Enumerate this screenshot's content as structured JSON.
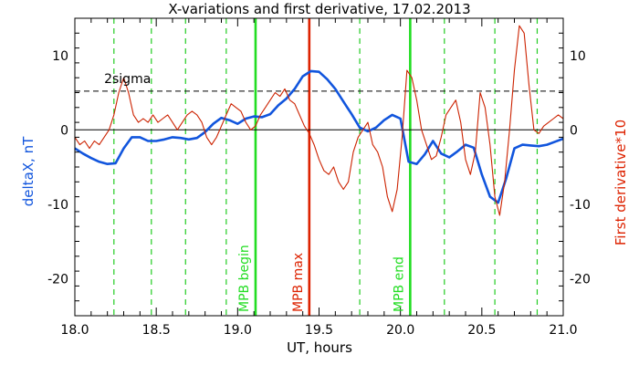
{
  "chart_data": {
    "type": "line",
    "title": "X-variations and first derivative, 17.02.2013",
    "xlabel": "UT, hours",
    "ylabel_left": "deltaX, nT",
    "ylabel_right": "First derivative*10",
    "xlim": [
      18.0,
      21.0
    ],
    "ylim": [
      -25,
      15
    ],
    "x_ticks": [
      18.0,
      18.5,
      19.0,
      19.5,
      20.0,
      20.5,
      21.0
    ],
    "x_tick_labels": [
      "18.0",
      "18.5",
      "19.0",
      "19.5",
      "20.0",
      "20.5",
      "21.0"
    ],
    "y_ticks": [
      10,
      0,
      -10,
      -20
    ],
    "y_tick_labels": [
      "10",
      "0",
      "-10",
      "-20"
    ],
    "grid": false,
    "zero_line": 0,
    "sigma_line": {
      "label": "2sigma",
      "y": 5.2,
      "color": "#000000"
    },
    "dashed_verticals": [
      18.24,
      18.47,
      18.68,
      18.93,
      19.75,
      20.27,
      20.58,
      20.84
    ],
    "dashed_color": "#22cc22",
    "markers": [
      {
        "x": 19.11,
        "label": "MPB begin",
        "color": "#22dd22"
      },
      {
        "x": 19.44,
        "label": "MPB max",
        "color": "#dd2200"
      },
      {
        "x": 20.06,
        "label": "MPB end",
        "color": "#22dd22"
      }
    ],
    "series": [
      {
        "name": "deltaX",
        "color": "#1155dd",
        "x": [
          18.0,
          18.05,
          18.1,
          18.15,
          18.2,
          18.25,
          18.3,
          18.35,
          18.4,
          18.45,
          18.5,
          18.55,
          18.6,
          18.65,
          18.7,
          18.75,
          18.8,
          18.85,
          18.9,
          18.95,
          19.0,
          19.05,
          19.1,
          19.15,
          19.2,
          19.25,
          19.3,
          19.35,
          19.4,
          19.45,
          19.5,
          19.55,
          19.6,
          19.65,
          19.7,
          19.75,
          19.8,
          19.85,
          19.9,
          19.95,
          20.0,
          20.05,
          20.1,
          20.15,
          20.2,
          20.25,
          20.3,
          20.35,
          20.4,
          20.45,
          20.5,
          20.55,
          20.6,
          20.65,
          20.7,
          20.75,
          20.8,
          20.85,
          20.9,
          20.95,
          21.0
        ],
        "y": [
          -2.5,
          -3.2,
          -3.8,
          -4.3,
          -4.6,
          -4.5,
          -2.5,
          -1.0,
          -1.0,
          -1.5,
          -1.5,
          -1.3,
          -1.0,
          -1.1,
          -1.3,
          -1.1,
          -0.3,
          0.8,
          1.6,
          1.3,
          0.8,
          1.5,
          1.8,
          1.7,
          2.1,
          3.3,
          4.2,
          5.5,
          7.2,
          7.9,
          7.8,
          6.8,
          5.5,
          3.8,
          2.1,
          0.3,
          -0.2,
          0.3,
          1.3,
          2.0,
          1.5,
          -4.3,
          -4.6,
          -3.3,
          -1.5,
          -3.2,
          -3.7,
          -2.9,
          -2.0,
          -2.4,
          -6.0,
          -9.0,
          -9.8,
          -6.5,
          -2.5,
          -2.0,
          -2.1,
          -2.2,
          -2.0,
          -1.6,
          -1.2
        ]
      },
      {
        "name": "First derivative*10",
        "color": "#cc2200",
        "x": [
          18.0,
          18.03,
          18.06,
          18.09,
          18.12,
          18.15,
          18.18,
          18.21,
          18.24,
          18.27,
          18.3,
          18.33,
          18.36,
          18.39,
          18.42,
          18.45,
          18.48,
          18.51,
          18.54,
          18.57,
          18.6,
          18.63,
          18.66,
          18.69,
          18.72,
          18.75,
          18.78,
          18.81,
          18.84,
          18.87,
          18.9,
          18.93,
          18.96,
          18.99,
          19.02,
          19.05,
          19.08,
          19.11,
          19.14,
          19.17,
          19.2,
          19.23,
          19.26,
          19.29,
          19.32,
          19.35,
          19.38,
          19.41,
          19.44,
          19.47,
          19.5,
          19.53,
          19.56,
          19.59,
          19.62,
          19.65,
          19.68,
          19.71,
          19.74,
          19.77,
          19.8,
          19.83,
          19.86,
          19.89,
          19.92,
          19.95,
          19.98,
          20.01,
          20.04,
          20.07,
          20.1,
          20.13,
          20.16,
          20.19,
          20.22,
          20.25,
          20.28,
          20.31,
          20.34,
          20.37,
          20.4,
          20.43,
          20.46,
          20.49,
          20.52,
          20.55,
          20.58,
          20.61,
          20.64,
          20.67,
          20.7,
          20.73,
          20.76,
          20.79,
          20.82,
          20.85,
          20.88,
          20.91,
          20.94,
          20.97,
          21.0
        ],
        "y": [
          -1.0,
          -2.0,
          -1.5,
          -2.5,
          -1.5,
          -2.0,
          -1.0,
          0.0,
          2.0,
          5.0,
          7.0,
          5.0,
          2.0,
          1.0,
          1.5,
          1.0,
          2.0,
          1.0,
          1.5,
          2.0,
          1.0,
          0.0,
          1.0,
          2.0,
          2.5,
          2.0,
          1.0,
          -1.0,
          -2.0,
          -1.0,
          0.5,
          2.0,
          3.5,
          3.0,
          2.5,
          1.0,
          0.0,
          0.5,
          2.0,
          3.0,
          4.0,
          5.0,
          4.5,
          5.5,
          4.0,
          3.5,
          2.0,
          0.5,
          -0.5,
          -2.0,
          -4.0,
          -5.5,
          -6.0,
          -5.0,
          -7.0,
          -8.0,
          -7.0,
          -3.0,
          -1.0,
          0.0,
          1.0,
          -2.0,
          -3.0,
          -5.0,
          -9.0,
          -11.0,
          -8.0,
          -1.0,
          8.0,
          7.0,
          4.0,
          0.0,
          -2.0,
          -4.0,
          -3.5,
          -1.0,
          2.0,
          3.0,
          4.0,
          1.0,
          -4.0,
          -6.0,
          -3.0,
          5.0,
          3.0,
          -2.0,
          -9.0,
          -11.5,
          -7.0,
          0.0,
          8.0,
          14.0,
          13.0,
          6.0,
          0.0,
          -0.5,
          0.5,
          1.0,
          1.5,
          2.0,
          1.5
        ]
      }
    ]
  }
}
